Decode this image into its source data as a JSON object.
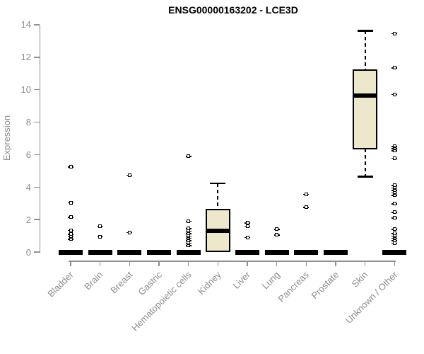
{
  "colors": {
    "background": "#FFFFFF",
    "box_fill": "#EDE7CB",
    "box_stroke": "#000000",
    "axis": "#8F8F8F",
    "tick_label": "#8C8C8C",
    "title": "#000000"
  },
  "chart_data": {
    "type": "boxplot",
    "title": "ENSG00000163202 - LCE3D",
    "xlabel": "",
    "ylabel": "Expression",
    "ylim": [
      0,
      14
    ],
    "yticks": [
      0,
      2,
      4,
      6,
      8,
      10,
      12,
      14
    ],
    "grid": false,
    "legend": null,
    "categories": [
      "Bladder",
      "Brain",
      "Breast",
      "Gastric",
      "Hematopoietic cells",
      "Kidney",
      "Liver",
      "Lung",
      "Pancreas",
      "Prostate",
      "Skin",
      "Unknown / Other"
    ],
    "series": [
      {
        "category": "Bladder",
        "q1": 0,
        "median": 0,
        "q3": 0,
        "whisker_low": 0,
        "whisker_high": 0,
        "outliers": [
          5.25,
          3.05,
          2.15,
          1.35,
          1.1,
          0.95,
          0.8
        ]
      },
      {
        "category": "Brain",
        "q1": 0,
        "median": 0,
        "q3": 0,
        "whisker_low": 0,
        "whisker_high": 0,
        "outliers": [
          1.6,
          0.95
        ]
      },
      {
        "category": "Breast",
        "q1": 0,
        "median": 0,
        "q3": 0,
        "whisker_low": 0,
        "whisker_high": 0,
        "outliers": [
          4.75,
          1.2
        ]
      },
      {
        "category": "Gastric",
        "q1": 0,
        "median": 0,
        "q3": 0,
        "whisker_low": 0,
        "whisker_high": 0,
        "outliers": []
      },
      {
        "category": "Hematopoietic cells",
        "q1": 0,
        "median": 0,
        "q3": 0,
        "whisker_low": 0,
        "whisker_high": 0,
        "outliers": [
          5.9,
          1.9,
          1.45,
          1.3,
          1.15,
          1.0,
          0.85,
          0.7,
          0.55,
          0.4
        ]
      },
      {
        "category": "Kidney",
        "q1": 0.05,
        "median": 1.3,
        "q3": 2.6,
        "whisker_low": 0.05,
        "whisker_high": 4.25,
        "outliers": []
      },
      {
        "category": "Liver",
        "q1": 0,
        "median": 0,
        "q3": 0,
        "whisker_low": 0,
        "whisker_high": 0,
        "outliers": [
          1.8,
          1.6,
          0.9
        ]
      },
      {
        "category": "Lung",
        "q1": 0,
        "median": 0,
        "q3": 0,
        "whisker_low": 0,
        "whisker_high": 0,
        "outliers": [
          1.4,
          1.05
        ]
      },
      {
        "category": "Pancreas",
        "q1": 0,
        "median": 0,
        "q3": 0,
        "whisker_low": 0,
        "whisker_high": 0,
        "outliers": [
          3.55,
          2.75
        ]
      },
      {
        "category": "Prostate",
        "q1": 0,
        "median": 0,
        "q3": 0,
        "whisker_low": 0,
        "whisker_high": 0,
        "outliers": []
      },
      {
        "category": "Skin",
        "q1": 6.35,
        "median": 9.65,
        "q3": 11.2,
        "whisker_low": 4.65,
        "whisker_high": 13.65,
        "outliers": []
      },
      {
        "category": "Unknown / Other",
        "q1": 0,
        "median": 0,
        "q3": 0,
        "whisker_low": 0,
        "whisker_high": 0,
        "outliers": [
          13.45,
          11.35,
          9.7,
          6.5,
          6.38,
          6.25,
          5.8,
          4.1,
          3.95,
          3.8,
          3.65,
          3.5,
          2.97,
          2.45,
          2.1,
          1.4,
          1.15,
          1.0,
          0.85,
          0.7,
          0.55
        ]
      }
    ]
  }
}
